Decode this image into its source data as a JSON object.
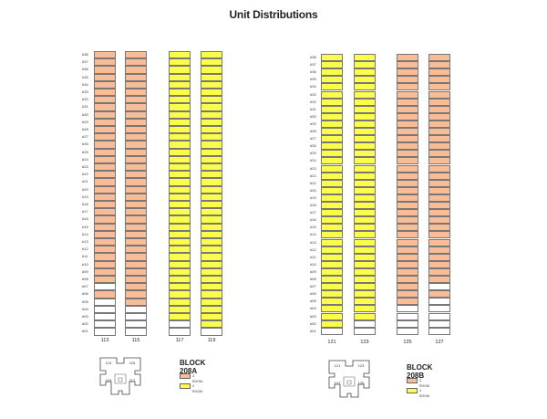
{
  "page": {
    "title": "Unit Distributions"
  },
  "colors": {
    "room3": "#f8bc96",
    "room4": "#fcfc4a",
    "empty": "#ffffff",
    "stroke": "#777777"
  },
  "floors": [
    "#01",
    "#02",
    "#03",
    "#04",
    "#05",
    "#06",
    "#07",
    "#08",
    "#09",
    "#10",
    "#11",
    "#12",
    "#13",
    "#14",
    "#15",
    "#16",
    "#17",
    "#18",
    "#19",
    "#20",
    "#21",
    "#22",
    "#23",
    "#24",
    "#25",
    "#26",
    "#27",
    "#28",
    "#29",
    "#30",
    "#31",
    "#32",
    "#33",
    "#34",
    "#35",
    "#36",
    "#37",
    "#38"
  ],
  "blocks": [
    {
      "name": "BLOCK 208A",
      "columns": [
        {
          "label": "113",
          "type": "3 ROOM",
          "filled_floors": [
            "#06",
            "#08",
            "#09",
            "#10",
            "#11",
            "#12",
            "#13",
            "#14",
            "#15",
            "#16",
            "#17",
            "#18",
            "#19",
            "#20",
            "#21",
            "#22",
            "#23",
            "#24",
            "#25",
            "#26",
            "#27",
            "#28",
            "#29",
            "#30",
            "#31",
            "#32",
            "#33",
            "#34",
            "#35",
            "#36",
            "#37",
            "#38"
          ]
        },
        {
          "label": "115",
          "type": "3 ROOM",
          "filled_floors": [
            "#05",
            "#06",
            "#07",
            "#08",
            "#09",
            "#10",
            "#11",
            "#12",
            "#13",
            "#14",
            "#15",
            "#16",
            "#17",
            "#18",
            "#19",
            "#20",
            "#21",
            "#22",
            "#23",
            "#24",
            "#25",
            "#26",
            "#27",
            "#28",
            "#29",
            "#30",
            "#31",
            "#32",
            "#33",
            "#34",
            "#35",
            "#36",
            "#37",
            "#38"
          ]
        },
        {
          "label": "117",
          "type": "4 ROOM",
          "filled_floors": [
            "#03",
            "#04",
            "#05",
            "#06",
            "#07",
            "#08",
            "#09",
            "#10",
            "#11",
            "#12",
            "#13",
            "#14",
            "#15",
            "#16",
            "#17",
            "#18",
            "#19",
            "#20",
            "#21",
            "#22",
            "#23",
            "#24",
            "#25",
            "#26",
            "#27",
            "#28",
            "#29",
            "#30",
            "#31",
            "#32",
            "#33",
            "#34",
            "#35",
            "#36",
            "#37",
            "#38"
          ]
        },
        {
          "label": "119",
          "type": "4 ROOM",
          "filled_floors": [
            "#02",
            "#03",
            "#04",
            "#05",
            "#06",
            "#07",
            "#08",
            "#09",
            "#10",
            "#11",
            "#12",
            "#13",
            "#14",
            "#15",
            "#16",
            "#17",
            "#18",
            "#19",
            "#20",
            "#21",
            "#22",
            "#23",
            "#24",
            "#25",
            "#26",
            "#27",
            "#28",
            "#29",
            "#30",
            "#31",
            "#32",
            "#33",
            "#34",
            "#35",
            "#36",
            "#37",
            "#38"
          ]
        }
      ],
      "legend": [
        {
          "key": "room3",
          "label": "3 ROOM"
        },
        {
          "key": "room4",
          "label": "4 ROOM"
        }
      ],
      "keyplan_units": [
        "113",
        "115",
        "119",
        "117"
      ]
    },
    {
      "name": "BLOCK 208B",
      "columns": [
        {
          "label": "121",
          "type": "4 ROOM",
          "filled_floors": [
            "#02",
            "#03",
            "#04",
            "#05",
            "#06",
            "#07",
            "#08",
            "#09",
            "#10",
            "#11",
            "#12",
            "#13",
            "#14",
            "#15",
            "#16",
            "#17",
            "#18",
            "#19",
            "#20",
            "#21",
            "#22",
            "#23",
            "#24",
            "#25",
            "#26",
            "#27",
            "#28",
            "#29",
            "#30",
            "#31",
            "#32",
            "#33",
            "#34",
            "#35",
            "#36",
            "#37",
            "#38"
          ]
        },
        {
          "label": "123",
          "type": "4 ROOM",
          "filled_floors": [
            "#03",
            "#04",
            "#05",
            "#06",
            "#07",
            "#08",
            "#09",
            "#10",
            "#11",
            "#12",
            "#13",
            "#14",
            "#15",
            "#16",
            "#17",
            "#18",
            "#19",
            "#20",
            "#21",
            "#22",
            "#23",
            "#24",
            "#25",
            "#26",
            "#27",
            "#28",
            "#29",
            "#30",
            "#31",
            "#32",
            "#33",
            "#34",
            "#35",
            "#36",
            "#37",
            "#38"
          ]
        },
        {
          "label": "125",
          "type": "3 ROOM",
          "filled_floors": [
            "#05",
            "#06",
            "#07",
            "#08",
            "#09",
            "#10",
            "#11",
            "#12",
            "#13",
            "#14",
            "#15",
            "#16",
            "#17",
            "#18",
            "#19",
            "#20",
            "#21",
            "#22",
            "#23",
            "#24",
            "#25",
            "#26",
            "#27",
            "#28",
            "#29",
            "#30",
            "#31",
            "#32",
            "#33",
            "#34",
            "#35",
            "#36",
            "#37",
            "#38"
          ]
        },
        {
          "label": "127",
          "type": "3 ROOM",
          "filled_floors": [
            "#06",
            "#08",
            "#09",
            "#10",
            "#11",
            "#12",
            "#13",
            "#14",
            "#15",
            "#16",
            "#17",
            "#18",
            "#19",
            "#20",
            "#21",
            "#22",
            "#23",
            "#24",
            "#25",
            "#26",
            "#27",
            "#28",
            "#29",
            "#30",
            "#31",
            "#32",
            "#33",
            "#34",
            "#35",
            "#36",
            "#37",
            "#38"
          ]
        }
      ],
      "legend": [
        {
          "key": "room3",
          "label": "3 ROOM"
        },
        {
          "key": "room4",
          "label": "4 ROOM"
        }
      ],
      "keyplan_units": [
        "121",
        "123",
        "127",
        "125"
      ]
    }
  ]
}
